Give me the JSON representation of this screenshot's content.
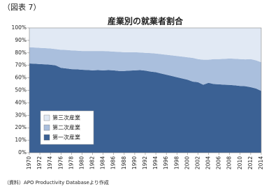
{
  "header": "（図表 7）",
  "source": "（資料）APO Productivity Databaseより作成",
  "chart_data": {
    "type": "stacked_area",
    "title": "産業別の就業者割合",
    "x": [
      1970,
      1971,
      1972,
      1973,
      1974,
      1975,
      1976,
      1977,
      1978,
      1979,
      1980,
      1981,
      1982,
      1983,
      1984,
      1985,
      1986,
      1987,
      1988,
      1989,
      1990,
      1991,
      1992,
      1993,
      1994,
      1995,
      1996,
      1997,
      1998,
      1999,
      2000,
      2001,
      2002,
      2003,
      2004,
      2005,
      2006,
      2007,
      2008,
      2009,
      2010,
      2011,
      2012,
      2013,
      2014
    ],
    "series": [
      {
        "name": "第一次産業",
        "color": "#3b6194",
        "values": [
          71.5,
          71.3,
          71.0,
          70.8,
          70.5,
          70.0,
          68.0,
          67.5,
          67.0,
          66.8,
          66.5,
          66.3,
          66.0,
          66.2,
          66.0,
          66.2,
          66.0,
          65.5,
          65.5,
          65.8,
          66.0,
          66.2,
          65.8,
          65.0,
          64.5,
          63.5,
          62.5,
          61.5,
          60.5,
          59.5,
          58.5,
          57.0,
          56.5,
          54.5,
          56.0,
          55.0,
          54.8,
          54.5,
          54.3,
          54.0,
          53.5,
          53.3,
          52.5,
          51.5,
          49.5
        ]
      },
      {
        "name": "第二次産業",
        "color": "#aabfdd",
        "values": [
          13.0,
          13.0,
          13.0,
          13.0,
          13.0,
          13.0,
          14.5,
          14.8,
          15.0,
          15.0,
          15.0,
          15.2,
          15.5,
          15.3,
          15.5,
          15.1,
          15.0,
          15.3,
          15.0,
          14.7,
          14.5,
          14.1,
          14.2,
          14.8,
          15.0,
          15.5,
          16.0,
          16.5,
          17.0,
          17.5,
          18.0,
          19.0,
          18.5,
          20.0,
          18.5,
          20.0,
          20.2,
          20.7,
          21.2,
          21.3,
          21.5,
          21.5,
          22.5,
          22.5,
          23.0
        ]
      },
      {
        "name": "第三次産業",
        "color": "#e1e9f4",
        "values": [
          15.5,
          15.7,
          16.0,
          16.2,
          16.5,
          17.0,
          17.5,
          17.7,
          18.0,
          18.2,
          18.5,
          18.5,
          18.5,
          18.5,
          18.5,
          18.7,
          19.0,
          19.2,
          19.5,
          19.5,
          19.5,
          19.7,
          20.0,
          20.2,
          20.5,
          21.0,
          21.5,
          22.0,
          22.5,
          23.0,
          23.5,
          24.0,
          25.0,
          25.5,
          25.5,
          25.0,
          25.0,
          24.8,
          24.5,
          24.7,
          25.0,
          25.2,
          25.0,
          26.0,
          27.5
        ]
      }
    ],
    "xlim": [
      1970,
      2014
    ],
    "xticks": [
      1970,
      1972,
      1974,
      1976,
      1978,
      1980,
      1982,
      1984,
      1986,
      1988,
      1990,
      1992,
      1994,
      1996,
      1998,
      2000,
      2002,
      2004,
      2006,
      2008,
      2010,
      2012,
      2014
    ],
    "ylim": [
      0,
      100
    ],
    "yticks": [
      {
        "value": 0,
        "label": "0%"
      },
      {
        "value": 10,
        "label": "10%"
      },
      {
        "value": 20,
        "label": "20%"
      },
      {
        "value": 30,
        "label": "30%"
      },
      {
        "value": 40,
        "label": "40%"
      },
      {
        "value": 50,
        "label": "50%"
      },
      {
        "value": 60,
        "label": "60%"
      },
      {
        "value": 70,
        "label": "70%"
      },
      {
        "value": 80,
        "label": "80%"
      },
      {
        "value": 90,
        "label": "90%"
      },
      {
        "value": 100,
        "label": "100%"
      }
    ],
    "legend": "lower-left"
  }
}
